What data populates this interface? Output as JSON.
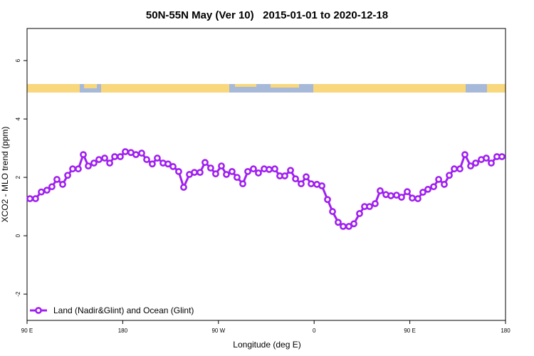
{
  "chart_data": {
    "type": "line",
    "title": "50N-55N May (Ver 10)   2015-01-01 to 2020-12-18",
    "x_label": "Longitude (deg E)",
    "y_label": "XCO2 - MLO trend (ppm)",
    "xlim": [
      90,
      540
    ],
    "xticks": [
      {
        "value": 90,
        "label": "90 E"
      },
      {
        "value": 180,
        "label": "180"
      },
      {
        "value": 270,
        "label": "90 W"
      },
      {
        "value": 360,
        "label": "0"
      },
      {
        "value": 450,
        "label": "90 E"
      },
      {
        "value": 540,
        "label": "180"
      }
    ],
    "ylim": [
      -2.9,
      7.1
    ],
    "yticks": [
      -2,
      0,
      2,
      4,
      6
    ],
    "legend": "bottom-left",
    "x": [
      92.7,
      98.0,
      103.4,
      108.7,
      113.4,
      118.1,
      123.5,
      128.2,
      132.9,
      138.2,
      142.9,
      147.6,
      152.9,
      157.6,
      163.0,
      167.7,
      172.4,
      177.7,
      182.4,
      187.7,
      192.4,
      197.8,
      202.5,
      207.8,
      212.5,
      217.9,
      222.6,
      227.3,
      232.6,
      237.3,
      242.7,
      247.4,
      252.7,
      257.4,
      262.7,
      267.4,
      272.8,
      277.5,
      282.8,
      287.5,
      292.9,
      297.6,
      302.9,
      307.6,
      313.0,
      317.7,
      323.0,
      327.7,
      332.4,
      337.8,
      342.5,
      347.8,
      352.5,
      357.2,
      362.6,
      367.3,
      372.6,
      377.3,
      382.6,
      387.3,
      392.7,
      397.4,
      402.7,
      407.4,
      412.1,
      417.4,
      422.1,
      427.5,
      432.2,
      437.5,
      442.2,
      447.6,
      452.3,
      457.6,
      462.3,
      467.0,
      472.4,
      477.1,
      482.4,
      487.1,
      491.8,
      497.1,
      501.8,
      507.2,
      511.9,
      517.2,
      521.9,
      526.6,
      531.9,
      536.6
    ],
    "series": [
      {
        "name": "Land (Nadir&Glint) and Ocean (Glint)",
        "color": "#a020f0",
        "values": [
          1.27,
          1.27,
          1.5,
          1.56,
          1.68,
          1.93,
          1.76,
          2.07,
          2.29,
          2.29,
          2.78,
          2.39,
          2.49,
          2.61,
          2.66,
          2.49,
          2.71,
          2.71,
          2.88,
          2.85,
          2.78,
          2.83,
          2.61,
          2.46,
          2.66,
          2.49,
          2.46,
          2.37,
          2.2,
          1.66,
          2.1,
          2.17,
          2.17,
          2.51,
          2.32,
          2.12,
          2.39,
          2.1,
          2.2,
          2.0,
          1.78,
          2.2,
          2.29,
          2.15,
          2.29,
          2.27,
          2.29,
          2.05,
          2.05,
          2.24,
          1.95,
          1.78,
          2.02,
          1.78,
          1.76,
          1.71,
          1.24,
          0.83,
          0.46,
          0.32,
          0.32,
          0.41,
          0.76,
          1.0,
          1.0,
          1.1,
          1.54,
          1.41,
          1.37,
          1.39,
          1.32,
          1.51,
          1.29,
          1.27,
          1.49,
          1.59,
          1.68,
          1.93,
          1.76,
          2.07,
          2.29,
          2.29,
          2.78,
          2.39,
          2.49,
          2.61,
          2.66,
          2.49,
          2.71,
          2.71
        ]
      }
    ]
  }
}
